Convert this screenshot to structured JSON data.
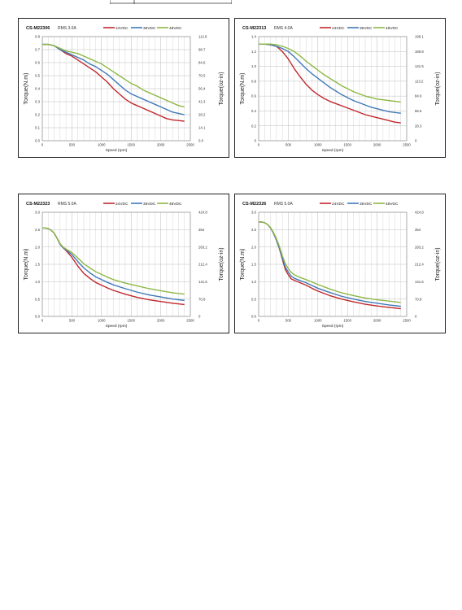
{
  "chart_data": [
    {
      "type": "line",
      "title": "CS-M22306",
      "subtitle": "RMS 3.0A",
      "xlabel": "Speed (rpm)",
      "ylabel": "Torque(N.m)",
      "ylabel_right": "Torque(oz-in)",
      "xlim": [
        0,
        2500
      ],
      "ylim": [
        0,
        0.8
      ],
      "xticks": [
        "0",
        "500",
        "1000",
        "1500",
        "2000",
        "2500"
      ],
      "yticks": [
        "0.0",
        "0.1",
        "0.2",
        "0.3",
        "0.4",
        "0.5",
        "0.6",
        "0.7",
        "0.8"
      ],
      "yticks_right": [
        "0.0",
        "14.1",
        "28.2",
        "42.3",
        "56.4",
        "70.5",
        "84.6",
        "98.7",
        "112.8"
      ],
      "grid": true,
      "legend_position": "top",
      "series": [
        {
          "name": "24VDC",
          "color": "#c0282d",
          "x": [
            0,
            100,
            200,
            300,
            400,
            500,
            600,
            700,
            800,
            900,
            1000,
            1100,
            1200,
            1300,
            1400,
            1500,
            1600,
            1700,
            1800,
            1900,
            2000,
            2100,
            2200,
            2300,
            2400
          ],
          "y": [
            0.74,
            0.74,
            0.73,
            0.7,
            0.67,
            0.65,
            0.62,
            0.59,
            0.56,
            0.53,
            0.49,
            0.45,
            0.4,
            0.36,
            0.32,
            0.29,
            0.27,
            0.25,
            0.23,
            0.21,
            0.19,
            0.17,
            0.16,
            0.155,
            0.15
          ]
        },
        {
          "name": "36VDC",
          "color": "#3f79b8",
          "x": [
            0,
            100,
            200,
            300,
            400,
            500,
            600,
            700,
            800,
            900,
            1000,
            1100,
            1200,
            1300,
            1400,
            1500,
            1600,
            1700,
            1800,
            1900,
            2000,
            2100,
            2200,
            2300,
            2400
          ],
          "y": [
            0.74,
            0.74,
            0.73,
            0.7,
            0.68,
            0.66,
            0.64,
            0.62,
            0.59,
            0.57,
            0.54,
            0.51,
            0.47,
            0.43,
            0.39,
            0.36,
            0.34,
            0.32,
            0.3,
            0.28,
            0.26,
            0.24,
            0.22,
            0.21,
            0.2
          ]
        },
        {
          "name": "48VDC",
          "color": "#8db844",
          "x": [
            0,
            100,
            200,
            300,
            400,
            500,
            600,
            700,
            800,
            900,
            1000,
            1100,
            1200,
            1300,
            1400,
            1500,
            1600,
            1700,
            1800,
            1900,
            2000,
            2100,
            2200,
            2300,
            2400
          ],
          "y": [
            0.74,
            0.74,
            0.73,
            0.71,
            0.69,
            0.68,
            0.67,
            0.65,
            0.63,
            0.61,
            0.59,
            0.56,
            0.53,
            0.5,
            0.47,
            0.44,
            0.42,
            0.39,
            0.37,
            0.35,
            0.33,
            0.31,
            0.29,
            0.27,
            0.26
          ]
        }
      ]
    },
    {
      "type": "line",
      "title": "CS-M22313",
      "subtitle": "RMS 4.0A",
      "xlabel": "Speed (rpm)",
      "ylabel": "Torque(N.m)",
      "ylabel_right": "Torque(oz-in)",
      "xlim": [
        0,
        2500
      ],
      "ylim": [
        0,
        1.4
      ],
      "xticks": [
        "0",
        "500",
        "1000",
        "1500",
        "2000",
        "2500"
      ],
      "yticks": [
        "0",
        "0.2",
        "0.4",
        "0.6",
        "0.8",
        "1.0",
        "1.2",
        "1.4"
      ],
      "yticks_right": [
        "0",
        "28.3",
        "56.6",
        "84.9",
        "113.2",
        "141.5",
        "169.8",
        "198.1"
      ],
      "grid": true,
      "legend_position": "top",
      "series": [
        {
          "name": "24VDC",
          "color": "#c0282d",
          "x": [
            0,
            100,
            200,
            300,
            400,
            500,
            600,
            700,
            800,
            900,
            1000,
            1100,
            1200,
            1300,
            1400,
            1500,
            1600,
            1700,
            1800,
            1900,
            2000,
            2100,
            2200,
            2300,
            2400
          ],
          "y": [
            1.3,
            1.3,
            1.29,
            1.27,
            1.2,
            1.1,
            0.97,
            0.86,
            0.76,
            0.68,
            0.62,
            0.57,
            0.53,
            0.5,
            0.47,
            0.44,
            0.41,
            0.38,
            0.35,
            0.33,
            0.31,
            0.29,
            0.27,
            0.25,
            0.24
          ]
        },
        {
          "name": "36VDC",
          "color": "#3f79b8",
          "x": [
            0,
            100,
            200,
            300,
            400,
            500,
            600,
            700,
            800,
            900,
            1000,
            1100,
            1200,
            1300,
            1400,
            1500,
            1600,
            1700,
            1800,
            1900,
            2000,
            2100,
            2200,
            2300,
            2400
          ],
          "y": [
            1.3,
            1.3,
            1.29,
            1.27,
            1.24,
            1.2,
            1.13,
            1.05,
            0.97,
            0.9,
            0.84,
            0.78,
            0.72,
            0.67,
            0.62,
            0.58,
            0.54,
            0.51,
            0.48,
            0.45,
            0.43,
            0.41,
            0.39,
            0.38,
            0.37
          ]
        },
        {
          "name": "48VDC",
          "color": "#8db844",
          "x": [
            0,
            100,
            200,
            300,
            400,
            500,
            600,
            700,
            800,
            900,
            1000,
            1100,
            1200,
            1300,
            1400,
            1500,
            1600,
            1700,
            1800,
            1900,
            2000,
            2100,
            2200,
            2300,
            2400
          ],
          "y": [
            1.3,
            1.3,
            1.3,
            1.29,
            1.27,
            1.24,
            1.2,
            1.14,
            1.07,
            1.01,
            0.95,
            0.89,
            0.84,
            0.79,
            0.74,
            0.7,
            0.66,
            0.63,
            0.6,
            0.58,
            0.56,
            0.55,
            0.54,
            0.53,
            0.52
          ]
        }
      ]
    },
    {
      "type": "line",
      "title": "CS-M22323",
      "subtitle": "RMS 5.0A",
      "xlabel": "Speed (rpm)",
      "ylabel": "Torque(N.m)",
      "ylabel_right": "Torque(oz-in)",
      "xlim": [
        0,
        2500
      ],
      "ylim": [
        0,
        3.0
      ],
      "xticks": [
        "0",
        "500",
        "1000",
        "1500",
        "2000",
        "2500"
      ],
      "yticks": [
        "0.0",
        "0.5",
        "1.0",
        "1.5",
        "2.0",
        "2.5",
        "3.0"
      ],
      "yticks_right": [
        "0",
        "70.8",
        "141.6",
        "212.4",
        "283.2",
        "354",
        "424.8"
      ],
      "grid": true,
      "legend_position": "top",
      "series": [
        {
          "name": "24VDC",
          "color": "#c0282d",
          "x": [
            0,
            50,
            100,
            150,
            200,
            250,
            300,
            350,
            400,
            500,
            600,
            700,
            800,
            900,
            1000,
            1100,
            1200,
            1400,
            1600,
            1800,
            2000,
            2200,
            2400
          ],
          "y": [
            2.55,
            2.55,
            2.53,
            2.48,
            2.4,
            2.25,
            2.08,
            1.98,
            1.9,
            1.7,
            1.45,
            1.24,
            1.1,
            0.98,
            0.9,
            0.82,
            0.75,
            0.64,
            0.55,
            0.48,
            0.43,
            0.38,
            0.34
          ]
        },
        {
          "name": "36VDC",
          "color": "#3f79b8",
          "x": [
            0,
            50,
            100,
            150,
            200,
            250,
            300,
            350,
            400,
            500,
            600,
            700,
            800,
            900,
            1000,
            1100,
            1200,
            1400,
            1600,
            1800,
            2000,
            2200,
            2400
          ],
          "y": [
            2.55,
            2.55,
            2.53,
            2.48,
            2.4,
            2.25,
            2.08,
            1.98,
            1.92,
            1.78,
            1.58,
            1.4,
            1.26,
            1.14,
            1.06,
            0.98,
            0.91,
            0.8,
            0.7,
            0.62,
            0.56,
            0.5,
            0.46
          ]
        },
        {
          "name": "48VDC",
          "color": "#8db844",
          "x": [
            0,
            50,
            100,
            150,
            200,
            250,
            300,
            350,
            400,
            500,
            600,
            700,
            800,
            900,
            1000,
            1100,
            1200,
            1400,
            1600,
            1800,
            2000,
            2200,
            2400
          ],
          "y": [
            2.55,
            2.55,
            2.53,
            2.48,
            2.4,
            2.25,
            2.1,
            2.0,
            1.94,
            1.84,
            1.68,
            1.52,
            1.4,
            1.29,
            1.21,
            1.13,
            1.06,
            0.96,
            0.88,
            0.8,
            0.74,
            0.68,
            0.64
          ]
        }
      ]
    },
    {
      "type": "line",
      "title": "CS-M22326",
      "subtitle": "RMS 5.0A",
      "xlabel": "Speed (rpm)",
      "ylabel": "Torque(N.m)",
      "ylabel_right": "Torque(oz-in)",
      "xlim": [
        0,
        2500
      ],
      "ylim": [
        0,
        3.0
      ],
      "xticks": [
        "0",
        "500",
        "1000",
        "1500",
        "2000",
        "2500"
      ],
      "yticks": [
        "0.0",
        "0.5",
        "1.0",
        "1.5",
        "2.0",
        "2.5",
        "3.0"
      ],
      "yticks_right": [
        "0",
        "70.8",
        "141.6",
        "212.4",
        "283.2",
        "354",
        "424.8"
      ],
      "grid": true,
      "legend_position": "top",
      "series": [
        {
          "name": "24VDC",
          "color": "#c0282d",
          "x": [
            0,
            50,
            100,
            150,
            200,
            250,
            300,
            350,
            400,
            450,
            500,
            550,
            600,
            700,
            800,
            900,
            1000,
            1200,
            1400,
            1600,
            1800,
            2000,
            2200,
            2400
          ],
          "y": [
            2.72,
            2.72,
            2.7,
            2.65,
            2.55,
            2.4,
            2.2,
            1.95,
            1.65,
            1.35,
            1.2,
            1.08,
            1.04,
            0.97,
            0.9,
            0.81,
            0.73,
            0.6,
            0.5,
            0.42,
            0.35,
            0.3,
            0.26,
            0.22
          ]
        },
        {
          "name": "36VDC",
          "color": "#3f79b8",
          "x": [
            0,
            50,
            100,
            150,
            200,
            250,
            300,
            350,
            400,
            450,
            500,
            550,
            600,
            700,
            800,
            900,
            1000,
            1200,
            1400,
            1600,
            1800,
            2000,
            2200,
            2400
          ],
          "y": [
            2.72,
            2.72,
            2.7,
            2.65,
            2.55,
            2.4,
            2.2,
            1.97,
            1.68,
            1.42,
            1.28,
            1.16,
            1.1,
            1.03,
            0.97,
            0.89,
            0.81,
            0.69,
            0.58,
            0.5,
            0.43,
            0.38,
            0.33,
            0.29
          ]
        },
        {
          "name": "48VDC",
          "color": "#8db844",
          "x": [
            0,
            50,
            100,
            150,
            200,
            250,
            300,
            350,
            400,
            450,
            500,
            550,
            600,
            700,
            800,
            900,
            1000,
            1200,
            1400,
            1600,
            1800,
            2000,
            2200,
            2400
          ],
          "y": [
            2.72,
            2.72,
            2.7,
            2.65,
            2.56,
            2.42,
            2.24,
            2.02,
            1.75,
            1.52,
            1.38,
            1.27,
            1.2,
            1.12,
            1.06,
            0.99,
            0.92,
            0.79,
            0.68,
            0.6,
            0.53,
            0.48,
            0.44,
            0.4
          ]
        }
      ]
    }
  ]
}
